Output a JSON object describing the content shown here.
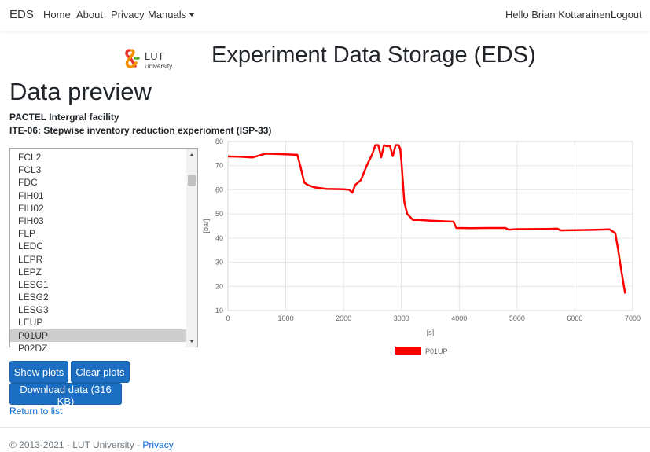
{
  "nav": {
    "brand": "EDS",
    "home": "Home",
    "about": "About",
    "privacy": "Privacy",
    "manuals": "Manuals",
    "greeting": "Hello Brian Kottarainen!",
    "logout": "Logout"
  },
  "logo": {
    "line1": "LUT",
    "line2": "University",
    "colors": {
      "red": "#e6332a",
      "green": "#5bb030",
      "orange": "#f39200",
      "dark": "#3c3c3b"
    }
  },
  "header": {
    "title": "Experiment Data Storage (EDS)"
  },
  "page": {
    "title": "Data preview",
    "facility": "PACTEL Intergral facility",
    "experiment": "ITE-06: Stepwise inventory reduction experioment (ISP-33)"
  },
  "channels": {
    "items": [
      "FCL2",
      "FCL3",
      "FDC",
      "FIH01",
      "FIH02",
      "FIH03",
      "FLP",
      "LEDC",
      "LEPR",
      "LEPZ",
      "LESG1",
      "LESG2",
      "LESG3",
      "LEUP",
      "P01UP",
      "P02DZ"
    ],
    "selected": "P01UP"
  },
  "buttons": {
    "show_plots": "Show plots",
    "clear_plots": "Clear plots",
    "download": "Download data (316 KB)"
  },
  "return_link": "Return to list",
  "footer": {
    "copyright": "© 2013-2021 - LUT University - ",
    "privacy": "Privacy"
  },
  "chart_data": {
    "type": "line",
    "xlabel": "[s]",
    "ylabel": "[bar]",
    "xlim": [
      0,
      7000
    ],
    "ylim": [
      10,
      80
    ],
    "xticks": [
      "0",
      "1000",
      "2000",
      "3000",
      "4000",
      "5000",
      "6000",
      "7000"
    ],
    "yticks": [
      "10",
      "20",
      "30",
      "40",
      "50",
      "60",
      "70",
      "80"
    ],
    "grid": true,
    "legend_position": "bottom-center",
    "series": [
      {
        "name": "P01UP",
        "color": "#ff0000",
        "points": [
          [
            0,
            73.8
          ],
          [
            200,
            73.7
          ],
          [
            420,
            73.4
          ],
          [
            650,
            75
          ],
          [
            900,
            74.8
          ],
          [
            1200,
            74.5
          ],
          [
            1250,
            70
          ],
          [
            1320,
            63
          ],
          [
            1380,
            62
          ],
          [
            1500,
            61
          ],
          [
            1700,
            60.4
          ],
          [
            2000,
            60.2
          ],
          [
            2100,
            60
          ],
          [
            2150,
            58.8
          ],
          [
            2200,
            62
          ],
          [
            2300,
            64
          ],
          [
            2400,
            70
          ],
          [
            2500,
            75
          ],
          [
            2550,
            78.5
          ],
          [
            2600,
            78.5
          ],
          [
            2650,
            73.5
          ],
          [
            2700,
            78.5
          ],
          [
            2750,
            78
          ],
          [
            2800,
            78.3
          ],
          [
            2850,
            74
          ],
          [
            2900,
            78.5
          ],
          [
            2950,
            78.5
          ],
          [
            2980,
            77
          ],
          [
            3000,
            72
          ],
          [
            3050,
            55
          ],
          [
            3100,
            50
          ],
          [
            3200,
            47.5
          ],
          [
            3300,
            47.5
          ],
          [
            3500,
            47.2
          ],
          [
            3900,
            46.8
          ],
          [
            3950,
            44.2
          ],
          [
            4200,
            44.1
          ],
          [
            4500,
            44.2
          ],
          [
            4800,
            44.2
          ],
          [
            4850,
            43.5
          ],
          [
            5000,
            43.7
          ],
          [
            5500,
            43.8
          ],
          [
            5700,
            43.9
          ],
          [
            5750,
            43.2
          ],
          [
            6000,
            43.3
          ],
          [
            6300,
            43.4
          ],
          [
            6600,
            43.6
          ],
          [
            6700,
            42
          ],
          [
            6750,
            35
          ],
          [
            6800,
            27
          ],
          [
            6870,
            17
          ]
        ]
      }
    ]
  }
}
